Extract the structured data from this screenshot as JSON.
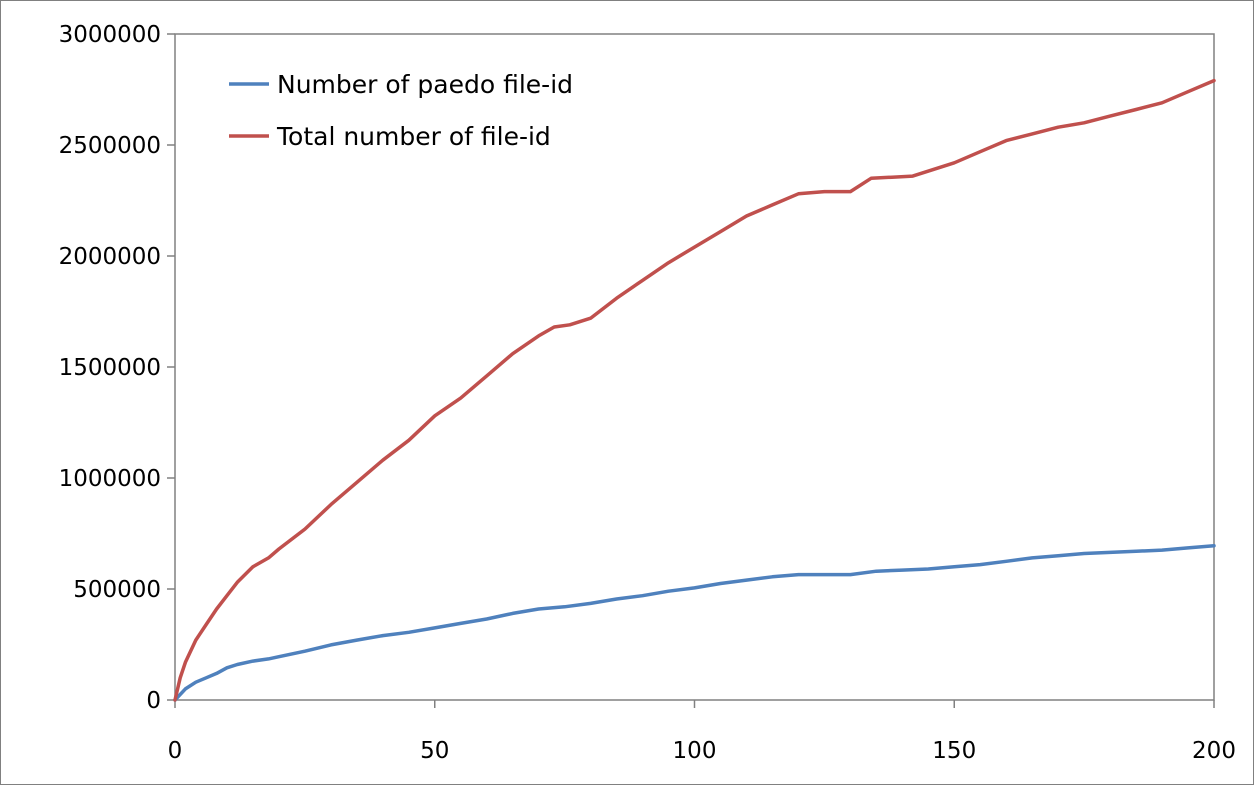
{
  "chart_data": {
    "type": "line",
    "title": "",
    "xlabel": "",
    "ylabel": "",
    "xlim": [
      0,
      200
    ],
    "ylim": [
      0,
      3000000
    ],
    "x_ticks": [
      0,
      50,
      100,
      150,
      200
    ],
    "y_ticks": [
      0,
      500000,
      1000000,
      1500000,
      2000000,
      2500000,
      3000000
    ],
    "grid": false,
    "legend_position": "top-left",
    "series": [
      {
        "name": "Number of paedo file-id",
        "color": "#4F81BD",
        "x": [
          0,
          2,
          4,
          6,
          8,
          10,
          12,
          15,
          18,
          20,
          25,
          30,
          35,
          40,
          45,
          50,
          55,
          60,
          65,
          70,
          75,
          80,
          85,
          90,
          95,
          100,
          105,
          110,
          115,
          120,
          125,
          130,
          135,
          140,
          145,
          150,
          155,
          160,
          165,
          170,
          175,
          180,
          185,
          190,
          195,
          200
        ],
        "values": [
          0,
          50000,
          80000,
          100000,
          120000,
          145000,
          160000,
          175000,
          185000,
          195000,
          220000,
          248000,
          270000,
          290000,
          305000,
          325000,
          345000,
          365000,
          390000,
          410000,
          420000,
          435000,
          455000,
          470000,
          490000,
          505000,
          525000,
          540000,
          555000,
          565000,
          565000,
          565000,
          580000,
          585000,
          590000,
          600000,
          610000,
          625000,
          640000,
          650000,
          660000,
          665000,
          670000,
          675000,
          685000,
          695000
        ]
      },
      {
        "name": "Total number of file-id",
        "color": "#C0504D",
        "x": [
          0,
          1,
          2,
          4,
          6,
          8,
          10,
          12,
          15,
          18,
          20,
          25,
          30,
          35,
          40,
          45,
          50,
          55,
          60,
          65,
          70,
          73,
          76,
          80,
          85,
          90,
          95,
          100,
          105,
          110,
          115,
          120,
          125,
          130,
          134,
          138,
          142,
          146,
          150,
          155,
          160,
          165,
          170,
          175,
          180,
          185,
          190,
          195,
          200
        ],
        "values": [
          0,
          100000,
          170000,
          270000,
          340000,
          410000,
          470000,
          530000,
          600000,
          640000,
          680000,
          770000,
          880000,
          980000,
          1080000,
          1170000,
          1280000,
          1360000,
          1460000,
          1560000,
          1640000,
          1680000,
          1690000,
          1720000,
          1810000,
          1890000,
          1970000,
          2040000,
          2110000,
          2180000,
          2230000,
          2280000,
          2290000,
          2290000,
          2350000,
          2355000,
          2360000,
          2390000,
          2420000,
          2470000,
          2520000,
          2550000,
          2580000,
          2600000,
          2630000,
          2660000,
          2690000,
          2740000,
          2790000
        ]
      }
    ]
  }
}
